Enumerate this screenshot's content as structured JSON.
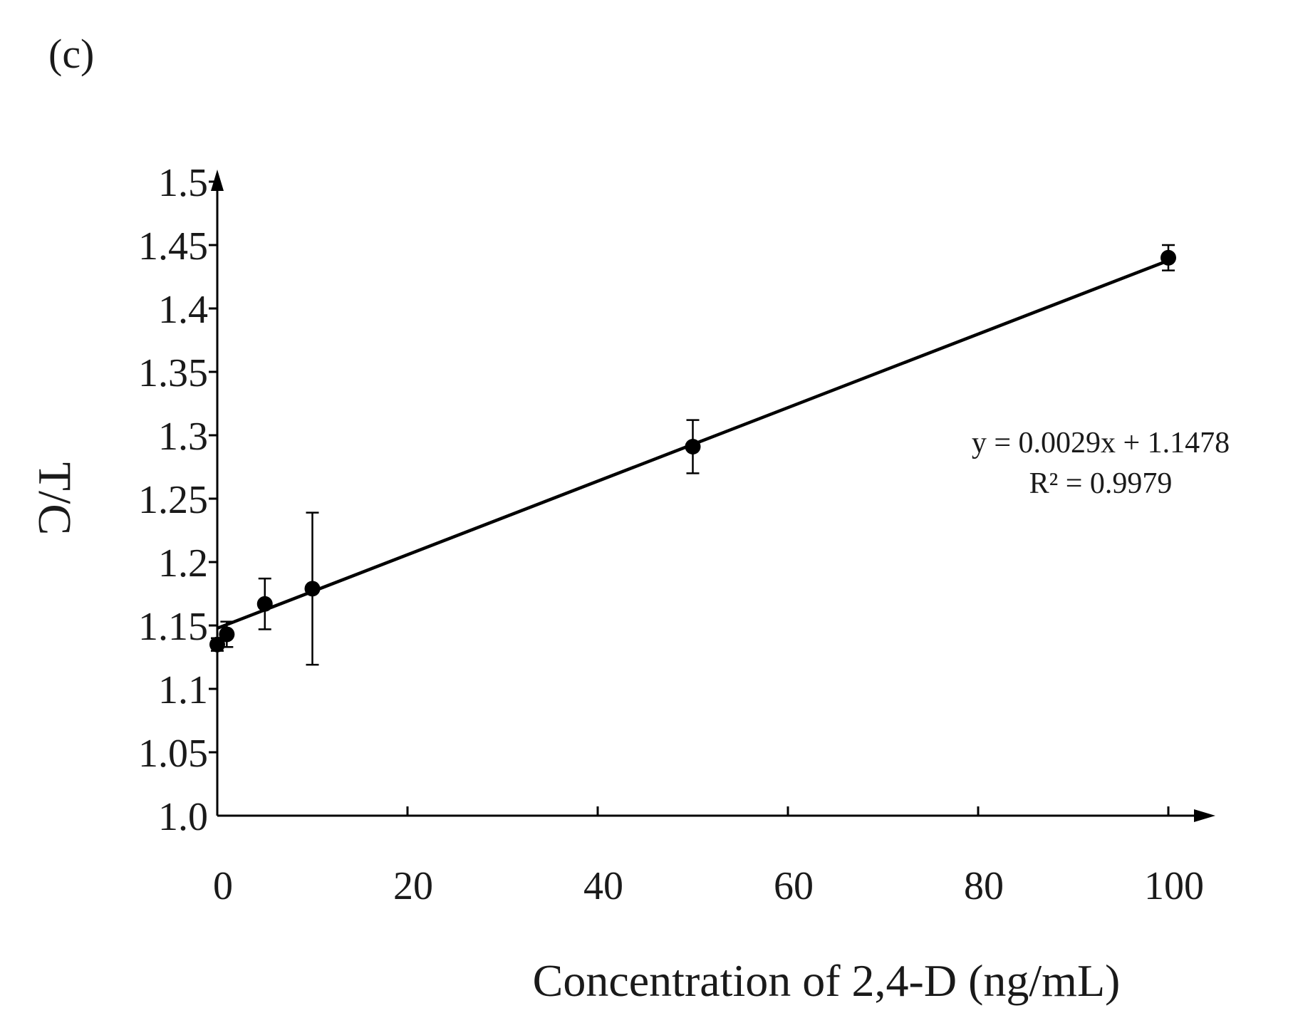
{
  "panel_label": "(c)",
  "chart_data": {
    "type": "scatter",
    "title": "",
    "xlabel": "Concentration of 2,4-D (ng/mL)",
    "ylabel": "T/C",
    "xlim": [
      0,
      100
    ],
    "ylim": [
      1.0,
      1.5
    ],
    "x_ticks": [
      0,
      20,
      40,
      60,
      80,
      100
    ],
    "x_tick_labels": [
      "0",
      "20",
      "40",
      "60",
      "80",
      "100"
    ],
    "y_ticks": [
      1.0,
      1.05,
      1.1,
      1.15,
      1.2,
      1.25,
      1.3,
      1.35,
      1.4,
      1.45,
      1.5
    ],
    "y_tick_labels": [
      "1.0",
      "1.05",
      "1.1",
      "1.15",
      "1.2",
      "1.25",
      "1.3",
      "1.35",
      "1.4",
      "1.45",
      "1.5"
    ],
    "grid": false,
    "series": [
      {
        "name": "T/C",
        "x": [
          0,
          1,
          5,
          10,
          50,
          100
        ],
        "y": [
          1.135,
          1.143,
          1.167,
          1.179,
          1.291,
          1.44
        ],
        "error": [
          0.005,
          0.01,
          0.02,
          0.06,
          0.021,
          0.01
        ]
      }
    ],
    "trendline": {
      "slope": 0.0029,
      "intercept": 1.1478,
      "x_range": [
        0,
        100
      ],
      "equation": "y = 0.0029x + 1.1478",
      "r_squared": "R² = 0.9979"
    },
    "colors": {
      "ink": "#000000",
      "text": "#1a1a1a"
    }
  }
}
